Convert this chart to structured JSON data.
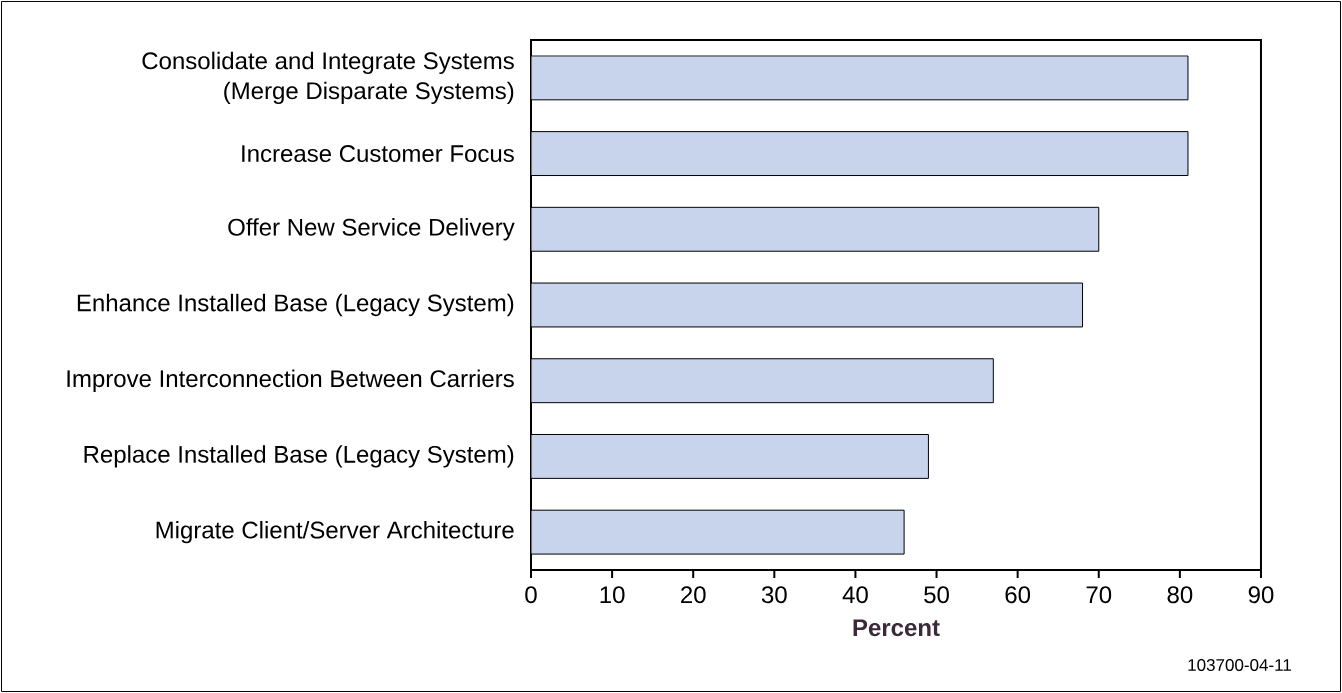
{
  "chart_data": {
    "type": "bar",
    "orientation": "horizontal",
    "categories": [
      "Consolidate and Integrate Systems\n(Merge Disparate Systems)",
      "Increase Customer Focus",
      "Offer New Service Delivery",
      "Enhance Installed Base (Legacy System)",
      "Improve Interconnection Between Carriers",
      "Replace Installed Base (Legacy System)",
      "Migrate Client/Server Architecture"
    ],
    "values": [
      81,
      81,
      70,
      68,
      57,
      49,
      46
    ],
    "color": "#c8d3ec",
    "xlabel": "Percent",
    "xlim": [
      0,
      90
    ],
    "xticks": [
      0,
      10,
      20,
      30,
      40,
      50,
      60,
      70,
      80,
      90
    ],
    "grid": false,
    "annotations": [
      "103700-04-11"
    ]
  }
}
